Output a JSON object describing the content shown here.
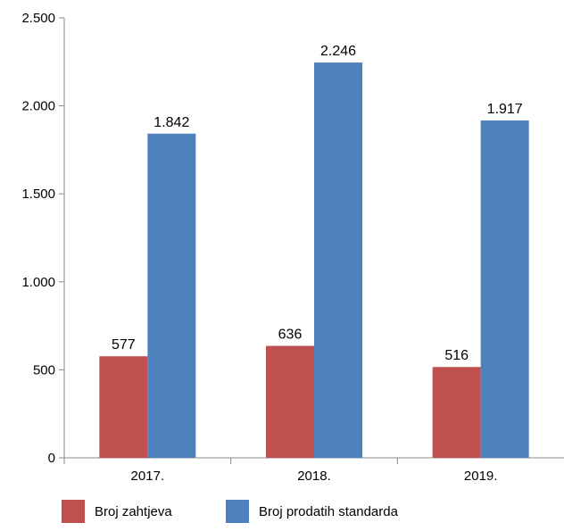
{
  "chart_data": {
    "type": "bar",
    "categories": [
      "2017.",
      "2018.",
      "2019."
    ],
    "series": [
      {
        "name": "Broj zahtjeva",
        "values": [
          577,
          636,
          516
        ],
        "labels": [
          "577",
          "636",
          "516"
        ],
        "color": "#c0504d"
      },
      {
        "name": "Broj prodatih standarda",
        "values": [
          1842,
          2246,
          1917
        ],
        "labels": [
          "1.842",
          "2.246",
          "1.917"
        ],
        "color": "#4f81bd"
      }
    ],
    "title": "",
    "xlabel": "",
    "ylabel": "",
    "ylim": [
      0,
      2500
    ],
    "yticks": [
      0,
      500,
      1000,
      1500,
      2000,
      2500
    ],
    "ytick_labels": [
      "0",
      "500",
      "1.000",
      "1.500",
      "2.000",
      "2.500"
    ],
    "grid": false,
    "legend_position": "bottom-left"
  }
}
